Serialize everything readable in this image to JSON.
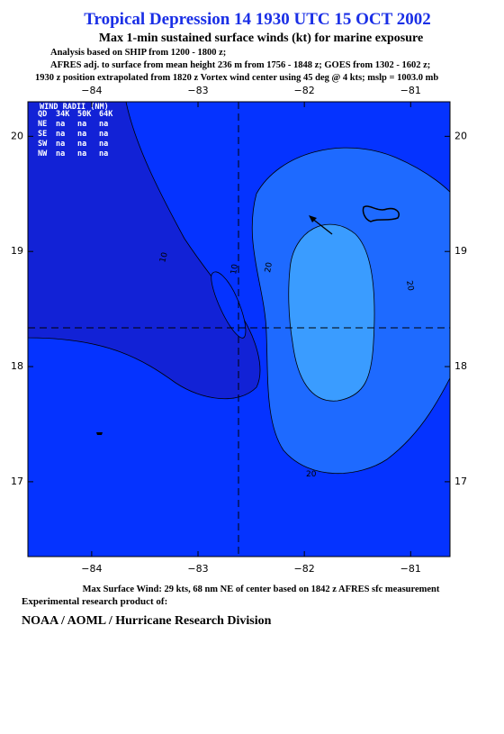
{
  "header": {
    "title": "Tropical Depression 14 1930 UTC 15 OCT 2002",
    "subtitle": "Max 1-min sustained surface winds (kt) for marine exposure",
    "notes": [
      "Analysis based on  SHIP from 1200 - 1800 z;",
      "AFRES adj. to surface from mean height 236 m from 1756 - 1848 z;  GOES from 1302 - 1602 z;",
      "1930 z position extrapolated from 1820 z Vortex wind center using 45 deg @ 4 kts; mslp = 1003.0 mb"
    ]
  },
  "map": {
    "xlim": [
      -84.6,
      -80.63
    ],
    "ylim": [
      16.35,
      20.3
    ],
    "xticks": [
      {
        "value": -84,
        "label": "−84"
      },
      {
        "value": -83,
        "label": "−83"
      },
      {
        "value": -82,
        "label": "−82"
      },
      {
        "value": -81,
        "label": "−81"
      }
    ],
    "yticks": [
      17,
      18,
      19,
      20
    ],
    "contour_labels": [
      "10",
      "10",
      "20",
      "20",
      "20"
    ],
    "wind_radii": {
      "title": "WIND RADII (NM)",
      "columns": [
        "QD",
        "34K",
        "50K",
        "64K"
      ],
      "rows": [
        [
          "NE",
          "na",
          "na",
          "na"
        ],
        [
          "SE",
          "na",
          "na",
          "na"
        ],
        [
          "SW",
          "na",
          "na",
          "na"
        ],
        [
          "NW",
          "na",
          "na",
          "na"
        ]
      ]
    }
  },
  "footer": {
    "max_wind": "Max Surface Wind: 29 kts, 68 nm NE of center based on 1842 z AFRES sfc measurement",
    "product": "Experimental research product of:",
    "org": "NOAA / AOML / Hurricane Research Division"
  }
}
